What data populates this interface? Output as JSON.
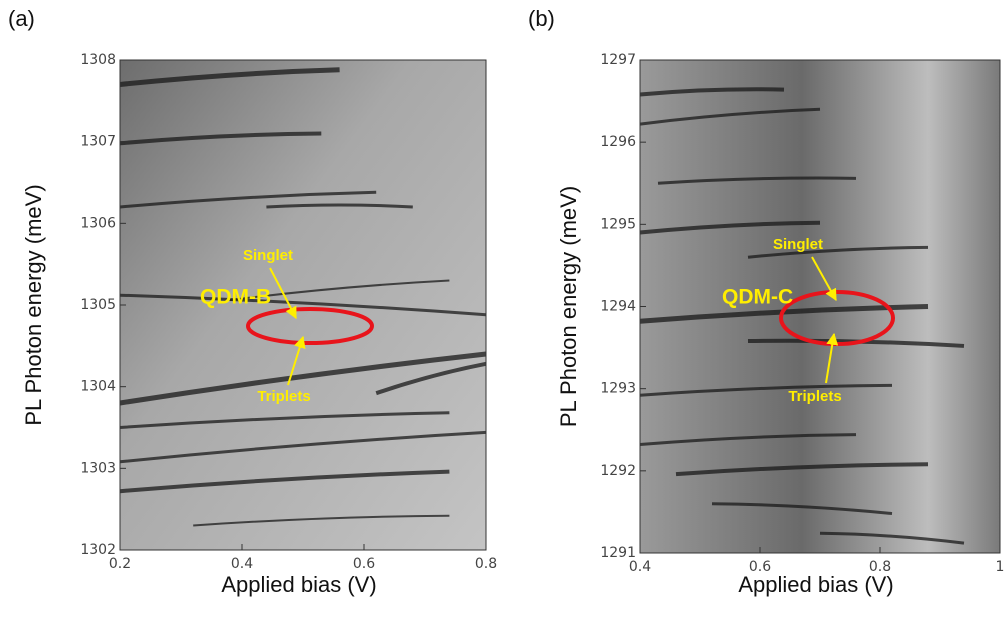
{
  "chart_data": [
    {
      "type": "map",
      "panel_label": "(a)",
      "xlabel": "Applied bias (V)",
      "ylabel": "PL Photon energy (meV)",
      "xlim": [
        0.2,
        0.8
      ],
      "xticks": [
        0.2,
        0.4,
        0.6,
        0.8
      ],
      "ylim": [
        1302,
        1308
      ],
      "yticks": [
        1302,
        1303,
        1304,
        1305,
        1306,
        1307,
        1308
      ],
      "annotations": [
        "QDM-B",
        "Singlet",
        "Triplets"
      ]
    },
    {
      "type": "map",
      "panel_label": "(b)",
      "xlabel": "Applied bias (V)",
      "ylabel": "PL Photon energy (meV)",
      "xlim": [
        0.4,
        1
      ],
      "xticks": [
        0.4,
        0.6,
        0.8,
        1
      ],
      "ylim": [
        1291,
        1297
      ],
      "yticks": [
        1291,
        1292,
        1293,
        1294,
        1295,
        1296,
        1297
      ],
      "annotations": [
        "QDM-C",
        "Singlet",
        "Triplets"
      ]
    }
  ]
}
